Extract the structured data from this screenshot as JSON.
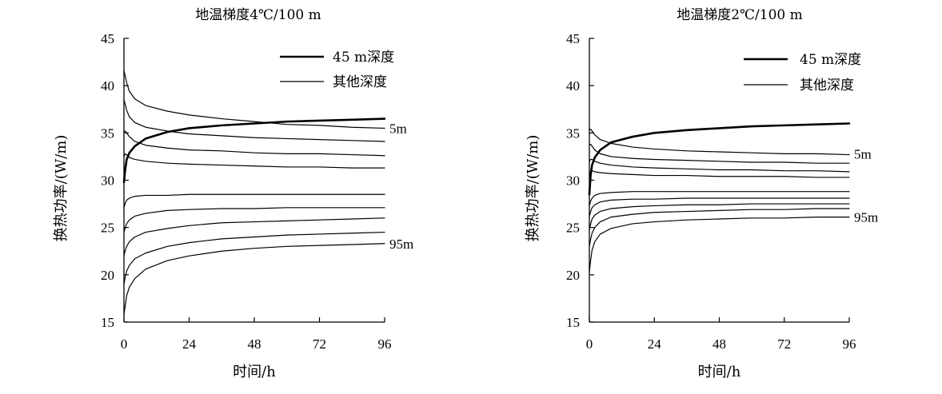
{
  "chart_data": [
    {
      "type": "line",
      "title": "地温梯度4℃/100 m",
      "xlabel": "时间/h",
      "ylabel": "换热功率/(W/m)",
      "xlim": [
        0,
        96
      ],
      "ylim": [
        15,
        45
      ],
      "xticks": [
        0,
        24,
        48,
        72,
        96
      ],
      "yticks": [
        15,
        20,
        25,
        30,
        35,
        40,
        45
      ],
      "legend": {
        "placement": "top-right",
        "entries": [
          {
            "label": "45 m深度",
            "style": "thick"
          },
          {
            "label": "其他深度",
            "style": "thin"
          }
        ]
      },
      "annotations": [
        {
          "text": "5m",
          "x": 96,
          "y": 35.5
        },
        {
          "text": "95m",
          "x": 96,
          "y": 23.3
        }
      ],
      "series": [
        {
          "style": "thin",
          "x": [
            0,
            0.5,
            1,
            2,
            4,
            8,
            16,
            24,
            36,
            48,
            60,
            72,
            84,
            96
          ],
          "y": [
            41.6,
            41.0,
            40.3,
            39.4,
            38.6,
            37.9,
            37.3,
            36.9,
            36.5,
            36.2,
            35.9,
            35.8,
            35.6,
            35.5
          ]
        },
        {
          "style": "thin",
          "x": [
            0,
            0.5,
            1,
            2,
            4,
            8,
            16,
            24,
            36,
            48,
            60,
            72,
            84,
            96
          ],
          "y": [
            38.5,
            38.0,
            37.4,
            36.7,
            36.1,
            35.6,
            35.2,
            34.9,
            34.7,
            34.5,
            34.4,
            34.3,
            34.2,
            34.1
          ]
        },
        {
          "style": "thin",
          "x": [
            0,
            0.5,
            1,
            2,
            4,
            8,
            16,
            24,
            36,
            48,
            60,
            72,
            84,
            96
          ],
          "y": [
            35.1,
            35.2,
            35.0,
            34.6,
            34.1,
            33.7,
            33.4,
            33.2,
            33.1,
            32.9,
            32.8,
            32.8,
            32.7,
            32.6
          ]
        },
        {
          "style": "thin",
          "x": [
            0,
            0.5,
            1,
            2,
            4,
            8,
            16,
            24,
            36,
            48,
            60,
            72,
            84,
            96
          ],
          "y": [
            32.5,
            32.8,
            32.7,
            32.4,
            32.2,
            32.0,
            31.8,
            31.7,
            31.6,
            31.5,
            31.4,
            31.4,
            31.3,
            31.3
          ]
        },
        {
          "style": "thick",
          "x": [
            0,
            0.5,
            1,
            2,
            4,
            8,
            16,
            24,
            36,
            48,
            60,
            72,
            84,
            96
          ],
          "y": [
            29.8,
            31.2,
            32.2,
            32.9,
            33.6,
            34.4,
            35.1,
            35.5,
            35.8,
            36.0,
            36.2,
            36.3,
            36.4,
            36.5
          ]
        },
        {
          "style": "thin",
          "x": [
            0,
            0.5,
            1,
            2,
            4,
            8,
            16,
            24,
            36,
            48,
            60,
            72,
            84,
            96
          ],
          "y": [
            27.1,
            27.6,
            27.9,
            28.1,
            28.3,
            28.4,
            28.4,
            28.5,
            28.5,
            28.5,
            28.5,
            28.5,
            28.5,
            28.5
          ]
        },
        {
          "style": "thin",
          "x": [
            0,
            0.5,
            1,
            2,
            4,
            8,
            16,
            24,
            36,
            48,
            60,
            72,
            84,
            96
          ],
          "y": [
            24.5,
            25.0,
            25.4,
            25.8,
            26.2,
            26.5,
            26.8,
            26.9,
            27.0,
            27.0,
            27.1,
            27.1,
            27.1,
            27.1
          ]
        },
        {
          "style": "thin",
          "x": [
            0,
            0.5,
            1,
            2,
            4,
            8,
            16,
            24,
            36,
            48,
            60,
            72,
            84,
            96
          ],
          "y": [
            22.0,
            22.6,
            23.0,
            23.5,
            24.0,
            24.5,
            24.9,
            25.2,
            25.5,
            25.6,
            25.7,
            25.8,
            25.9,
            26.0
          ]
        },
        {
          "style": "thin",
          "x": [
            0,
            0.5,
            1,
            2,
            4,
            8,
            16,
            24,
            36,
            48,
            60,
            72,
            84,
            96
          ],
          "y": [
            19.0,
            19.8,
            20.4,
            21.0,
            21.7,
            22.3,
            23.0,
            23.4,
            23.8,
            24.0,
            24.2,
            24.3,
            24.4,
            24.5
          ]
        },
        {
          "style": "thin",
          "x": [
            0,
            0.5,
            1,
            2,
            4,
            8,
            16,
            24,
            36,
            48,
            60,
            72,
            84,
            96
          ],
          "y": [
            15.8,
            16.8,
            17.8,
            18.7,
            19.6,
            20.6,
            21.5,
            22.0,
            22.5,
            22.8,
            23.0,
            23.1,
            23.2,
            23.3
          ]
        }
      ]
    },
    {
      "type": "line",
      "title": "地温梯度2℃/100 m",
      "xlabel": "时间/h",
      "ylabel": "换热功率/(W/m)",
      "xlim": [
        0,
        96
      ],
      "ylim": [
        15,
        45
      ],
      "xticks": [
        0,
        24,
        48,
        72,
        96
      ],
      "yticks": [
        15,
        20,
        25,
        30,
        35,
        40,
        45
      ],
      "legend": {
        "placement": "top-right",
        "entries": [
          {
            "label": "45 m深度",
            "style": "thick"
          },
          {
            "label": "其他深度",
            "style": "thin"
          }
        ]
      },
      "annotations": [
        {
          "text": "5m",
          "x": 96,
          "y": 32.8
        },
        {
          "text": "95m",
          "x": 96,
          "y": 26.1
        }
      ],
      "series": [
        {
          "style": "thin",
          "x": [
            0,
            0.5,
            1,
            2,
            4,
            8,
            16,
            24,
            36,
            48,
            60,
            72,
            84,
            96
          ],
          "y": [
            35.3,
            35.4,
            35.2,
            34.8,
            34.3,
            33.9,
            33.5,
            33.3,
            33.1,
            33.0,
            32.9,
            32.8,
            32.8,
            32.7
          ]
        },
        {
          "style": "thin",
          "x": [
            0,
            0.5,
            1,
            2,
            4,
            8,
            16,
            24,
            36,
            48,
            60,
            72,
            84,
            96
          ],
          "y": [
            33.7,
            33.8,
            33.6,
            33.2,
            32.8,
            32.5,
            32.3,
            32.2,
            32.1,
            32.0,
            31.9,
            31.9,
            31.8,
            31.8
          ]
        },
        {
          "style": "thin",
          "x": [
            0,
            0.5,
            1,
            2,
            4,
            8,
            16,
            24,
            36,
            48,
            60,
            72,
            84,
            96
          ],
          "y": [
            32.0,
            32.2,
            32.2,
            32.0,
            31.8,
            31.6,
            31.4,
            31.3,
            31.2,
            31.1,
            31.1,
            31.0,
            31.0,
            30.9
          ]
        },
        {
          "style": "thin",
          "x": [
            0,
            0.5,
            1,
            2,
            4,
            8,
            16,
            24,
            36,
            48,
            60,
            72,
            84,
            96
          ],
          "y": [
            30.6,
            30.9,
            31.0,
            30.9,
            30.8,
            30.7,
            30.6,
            30.5,
            30.5,
            30.4,
            30.4,
            30.4,
            30.3,
            30.3
          ]
        },
        {
          "style": "thick",
          "x": [
            0,
            0.5,
            1,
            2,
            4,
            8,
            16,
            24,
            36,
            48,
            60,
            72,
            84,
            96
          ],
          "y": [
            28.5,
            30.6,
            31.6,
            32.4,
            33.2,
            34.0,
            34.6,
            35.0,
            35.3,
            35.5,
            35.7,
            35.8,
            35.9,
            36.0
          ]
        },
        {
          "style": "thin",
          "x": [
            0,
            0.5,
            1,
            2,
            4,
            8,
            16,
            24,
            36,
            48,
            60,
            72,
            84,
            96
          ],
          "y": [
            27.3,
            27.8,
            28.1,
            28.4,
            28.6,
            28.7,
            28.8,
            28.8,
            28.8,
            28.8,
            28.8,
            28.8,
            28.8,
            28.8
          ]
        },
        {
          "style": "thin",
          "x": [
            0,
            0.5,
            1,
            2,
            4,
            8,
            16,
            24,
            36,
            48,
            60,
            72,
            84,
            96
          ],
          "y": [
            26.2,
            26.7,
            27.1,
            27.4,
            27.7,
            27.9,
            28.0,
            28.0,
            28.1,
            28.1,
            28.1,
            28.1,
            28.1,
            28.1
          ]
        },
        {
          "style": "thin",
          "x": [
            0,
            0.5,
            1,
            2,
            4,
            8,
            16,
            24,
            36,
            48,
            60,
            72,
            84,
            96
          ],
          "y": [
            24.8,
            25.4,
            25.9,
            26.3,
            26.7,
            27.0,
            27.2,
            27.3,
            27.4,
            27.4,
            27.5,
            27.5,
            27.5,
            27.5
          ]
        },
        {
          "style": "thin",
          "x": [
            0,
            0.5,
            1,
            2,
            4,
            8,
            16,
            24,
            36,
            48,
            60,
            72,
            84,
            96
          ],
          "y": [
            23.0,
            23.8,
            24.4,
            25.0,
            25.6,
            26.1,
            26.4,
            26.6,
            26.7,
            26.8,
            26.9,
            26.9,
            27.0,
            27.0
          ]
        },
        {
          "style": "thin",
          "x": [
            0,
            0.5,
            1,
            2,
            4,
            8,
            16,
            24,
            36,
            48,
            60,
            72,
            84,
            96
          ],
          "y": [
            20.3,
            21.6,
            22.6,
            23.5,
            24.3,
            24.9,
            25.4,
            25.6,
            25.8,
            25.9,
            26.0,
            26.0,
            26.1,
            26.1
          ]
        }
      ]
    }
  ]
}
